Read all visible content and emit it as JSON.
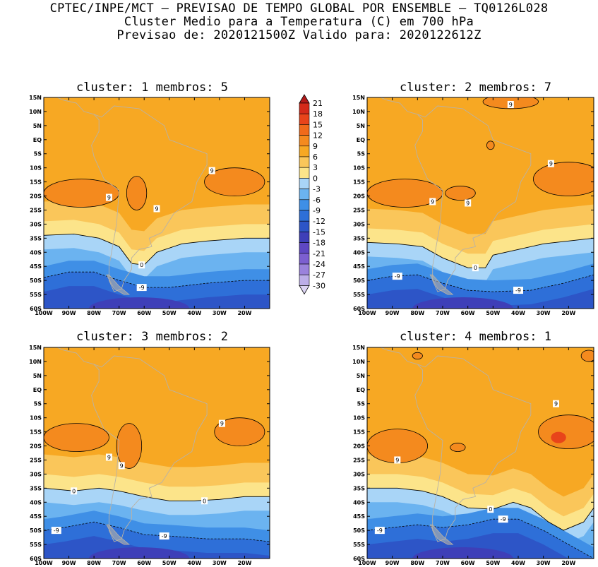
{
  "header": {
    "line1": "CPTEC/INPE/MCT – PREVISAO DE TEMPO GLOBAL POR ENSEMBLE – TQ0126L028",
    "line2": "Cluster Medio para a Temperatura (C) em 700 hPa",
    "line3": "Previsao de: 2020121500Z   Valido para: 2020122612Z"
  },
  "lat_labels": [
    "15N",
    "10N",
    "5N",
    "EQ",
    "5S",
    "10S",
    "15S",
    "20S",
    "25S",
    "30S",
    "35S",
    "40S",
    "45S",
    "50S",
    "55S",
    "60S"
  ],
  "lon_labels": [
    "100W",
    "90W",
    "80W",
    "70W",
    "60W",
    "50W",
    "40W",
    "30W",
    "20W"
  ],
  "colorbar": {
    "levels": [
      "21",
      "18",
      "15",
      "12",
      "9",
      "6",
      "3",
      "0",
      "-3",
      "-6",
      "-9",
      "-12",
      "-15",
      "-18",
      "-21",
      "-24",
      "-27",
      "-30"
    ],
    "colors": [
      "#b31a1a",
      "#d42a1a",
      "#e8441a",
      "#f06a1a",
      "#f48a1e",
      "#f7a823",
      "#fac65a",
      "#fce48a",
      "#a9d5f7",
      "#6bb3f0",
      "#3f8fe6",
      "#2e6fd8",
      "#2d55c7",
      "#3e3fb8",
      "#5e47c2",
      "#7c5fd0",
      "#9a82dc",
      "#bcaee8",
      "#dcd4f3"
    ],
    "unit": "C"
  },
  "panels": [
    {
      "title": "cluster: 1   membros: 5",
      "contour_labels": [
        {
          "text": "9",
          "lon": -74,
          "lat": -20.5
        },
        {
          "text": "9",
          "lon": -55,
          "lat": -24.5
        },
        {
          "text": "9",
          "lon": -33,
          "lat": -11
        },
        {
          "text": "0",
          "lon": -61,
          "lat": -44.5
        },
        {
          "text": "-9",
          "lon": -61,
          "lat": -52.5
        }
      ],
      "warm_cores": [
        {
          "lon": -85,
          "lat": -19,
          "rx": 15,
          "ry": 5
        },
        {
          "lon": -63,
          "lat": -19,
          "rx": 4,
          "ry": 6
        },
        {
          "lon": -24,
          "lat": -15,
          "rx": 12,
          "ry": 5
        }
      ],
      "zero_line": [
        [
          -100,
          -34
        ],
        [
          -88,
          -33.5
        ],
        [
          -78,
          -35
        ],
        [
          -70,
          -38
        ],
        [
          -65,
          -44
        ],
        [
          -60,
          -44.5
        ],
        [
          -55,
          -40
        ],
        [
          -45,
          -37
        ],
        [
          -35,
          -36
        ],
        [
          -20,
          -35
        ],
        [
          -10,
          -35
        ]
      ],
      "minus9_line": [
        [
          -100,
          -49
        ],
        [
          -90,
          -47
        ],
        [
          -80,
          -47
        ],
        [
          -70,
          -50
        ],
        [
          -60,
          -52.5
        ],
        [
          -50,
          -52.5
        ],
        [
          -35,
          -51
        ],
        [
          -20,
          -50
        ],
        [
          -10,
          -50
        ]
      ]
    },
    {
      "title": "cluster: 2   membros: 7",
      "contour_labels": [
        {
          "text": "9",
          "lon": -74,
          "lat": -22
        },
        {
          "text": "9",
          "lon": -60,
          "lat": -22.5
        },
        {
          "text": "9",
          "lon": -27,
          "lat": -8.5
        },
        {
          "text": "9",
          "lon": -43,
          "lat": 12.5
        },
        {
          "text": "0",
          "lon": -57,
          "lat": -45.5
        },
        {
          "text": "-9",
          "lon": -88,
          "lat": -48.5
        },
        {
          "text": "-9",
          "lon": -40,
          "lat": -53.5
        }
      ],
      "warm_cores": [
        {
          "lon": -85,
          "lat": -19,
          "rx": 15,
          "ry": 5
        },
        {
          "lon": -63,
          "lat": -19,
          "rx": 6,
          "ry": 2.5
        },
        {
          "lon": -20,
          "lat": -14,
          "rx": 14,
          "ry": 6
        },
        {
          "lon": -43,
          "lat": 13.5,
          "rx": 11,
          "ry": 2.5
        },
        {
          "lon": -51,
          "lat": -2,
          "rx": 1.5,
          "ry": 1.5
        }
      ],
      "zero_line": [
        [
          -100,
          -36.5
        ],
        [
          -88,
          -37
        ],
        [
          -78,
          -38
        ],
        [
          -70,
          -42
        ],
        [
          -60,
          -45.5
        ],
        [
          -53,
          -45.5
        ],
        [
          -50,
          -41
        ],
        [
          -40,
          -39
        ],
        [
          -30,
          -37
        ],
        [
          -20,
          -36
        ],
        [
          -10,
          -35
        ]
      ],
      "minus9_line": [
        [
          -100,
          -50
        ],
        [
          -90,
          -48.5
        ],
        [
          -80,
          -48
        ],
        [
          -70,
          -51
        ],
        [
          -60,
          -53.5
        ],
        [
          -50,
          -54
        ],
        [
          -35,
          -53.5
        ],
        [
          -22,
          -51
        ],
        [
          -10,
          -48
        ]
      ]
    },
    {
      "title": "cluster: 3   membros: 2",
      "contour_labels": [
        {
          "text": "9",
          "lon": -74,
          "lat": -24
        },
        {
          "text": "9",
          "lon": -69,
          "lat": -27
        },
        {
          "text": "9",
          "lon": -29,
          "lat": -12
        },
        {
          "text": "0",
          "lon": -88,
          "lat": -36
        },
        {
          "text": "0",
          "lon": -36,
          "lat": -39.5
        },
        {
          "text": "-9",
          "lon": -95,
          "lat": -50
        },
        {
          "text": "-9",
          "lon": -52,
          "lat": -52
        }
      ],
      "warm_cores": [
        {
          "lon": -87,
          "lat": -17,
          "rx": 13,
          "ry": 5
        },
        {
          "lon": -66,
          "lat": -20,
          "rx": 5,
          "ry": 8
        },
        {
          "lon": -22,
          "lat": -15,
          "rx": 10,
          "ry": 5
        }
      ],
      "zero_line": [
        [
          -100,
          -35
        ],
        [
          -88,
          -36
        ],
        [
          -78,
          -35
        ],
        [
          -70,
          -36
        ],
        [
          -60,
          -38
        ],
        [
          -50,
          -39.5
        ],
        [
          -40,
          -39.5
        ],
        [
          -30,
          -39
        ],
        [
          -20,
          -38
        ],
        [
          -10,
          -38
        ]
      ],
      "minus9_line": [
        [
          -100,
          -50
        ],
        [
          -92,
          -49
        ],
        [
          -80,
          -47
        ],
        [
          -70,
          -49
        ],
        [
          -60,
          -51.5
        ],
        [
          -50,
          -52
        ],
        [
          -35,
          -53
        ],
        [
          -20,
          -53
        ],
        [
          -10,
          -54
        ]
      ]
    },
    {
      "title": "cluster: 4   membros: 1",
      "contour_labels": [
        {
          "text": "9",
          "lon": -88,
          "lat": -25
        },
        {
          "text": "9",
          "lon": -25,
          "lat": -5
        },
        {
          "text": "0",
          "lon": -51,
          "lat": -42.5
        },
        {
          "text": "-9",
          "lon": -95,
          "lat": -50
        },
        {
          "text": "-9",
          "lon": -46,
          "lat": -46
        }
      ],
      "warm_cores": [
        {
          "lon": -88,
          "lat": -20,
          "rx": 12,
          "ry": 6
        },
        {
          "lon": -20,
          "lat": -15,
          "rx": 12,
          "ry": 6
        },
        {
          "lon": -64,
          "lat": -20.5,
          "rx": 3,
          "ry": 1.5
        },
        {
          "lon": -80,
          "lat": 12,
          "rx": 2,
          "ry": 1.2
        },
        {
          "lon": -12,
          "lat": 12,
          "rx": 3,
          "ry": 2
        }
      ],
      "hot_spot": {
        "lon": -24,
        "lat": -17,
        "rx": 3,
        "ry": 2
      },
      "zero_line": [
        [
          -100,
          -35
        ],
        [
          -88,
          -35
        ],
        [
          -78,
          -36
        ],
        [
          -70,
          -38
        ],
        [
          -60,
          -42
        ],
        [
          -50,
          -42.5
        ],
        [
          -42,
          -40
        ],
        [
          -35,
          -42
        ],
        [
          -28,
          -47
        ],
        [
          -22,
          -50
        ],
        [
          -14,
          -47
        ],
        [
          -10,
          -42
        ]
      ],
      "minus9_line": [
        [
          -100,
          -50
        ],
        [
          -90,
          -49
        ],
        [
          -80,
          -48
        ],
        [
          -70,
          -49
        ],
        [
          -60,
          -48
        ],
        [
          -50,
          -46
        ],
        [
          -40,
          -46
        ],
        [
          -30,
          -50
        ],
        [
          -20,
          -55
        ],
        [
          -10,
          -60
        ]
      ]
    }
  ]
}
